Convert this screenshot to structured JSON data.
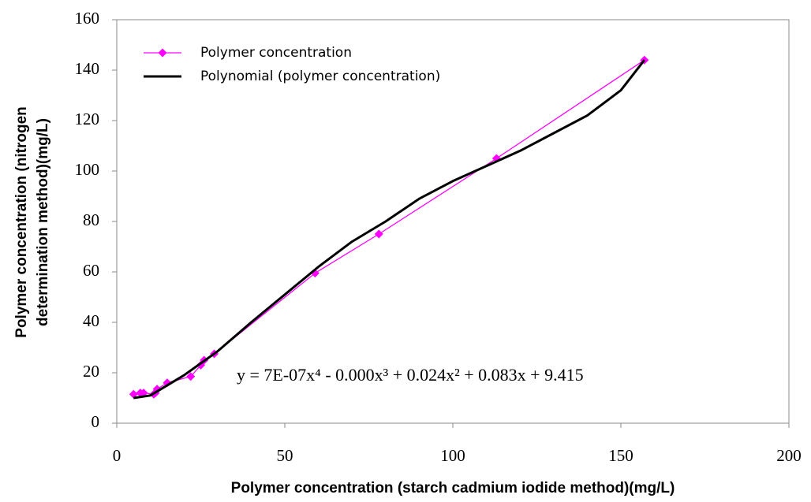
{
  "chart_data": {
    "type": "line",
    "xlabel": "Polymer concentration (starch cadmium iodide method)(mg/L)",
    "ylabel": [
      "Polymer concentration (nitrogen",
      "determination method)(mg/L)"
    ],
    "xlim": [
      0,
      200
    ],
    "xticks": [
      0,
      50,
      100,
      150,
      200
    ],
    "ylim": [
      0,
      160
    ],
    "yticks": [
      0,
      20,
      40,
      60,
      80,
      100,
      120,
      140,
      160
    ],
    "grid": false,
    "legend": "upper left",
    "annotation": "y = 7E-07x⁴ - 0.000x³ + 0.024x² + 0.083x + 9.415",
    "series": [
      {
        "name": "Polymer concentration",
        "color": "#ff00ff",
        "marker": "diamond",
        "x": [
          5,
          7,
          8,
          11,
          11.5,
          12,
          15,
          22,
          25,
          26,
          29,
          59,
          78,
          113,
          157
        ],
        "values": [
          11.5,
          12,
          12,
          11.5,
          12,
          13.5,
          16,
          18.5,
          23,
          25,
          27.5,
          59.5,
          75,
          105,
          144
        ]
      },
      {
        "name": "Polynomial (polymer concentration)",
        "color": "#000000",
        "marker": "none",
        "x": [
          5,
          10,
          20,
          30,
          40,
          50,
          60,
          70,
          80,
          90,
          100,
          110,
          120,
          130,
          140,
          150,
          157
        ],
        "values": [
          10,
          11,
          19,
          28.5,
          40,
          51,
          62,
          72,
          80,
          89,
          96,
          102,
          108,
          115,
          122,
          132,
          144
        ]
      }
    ]
  }
}
